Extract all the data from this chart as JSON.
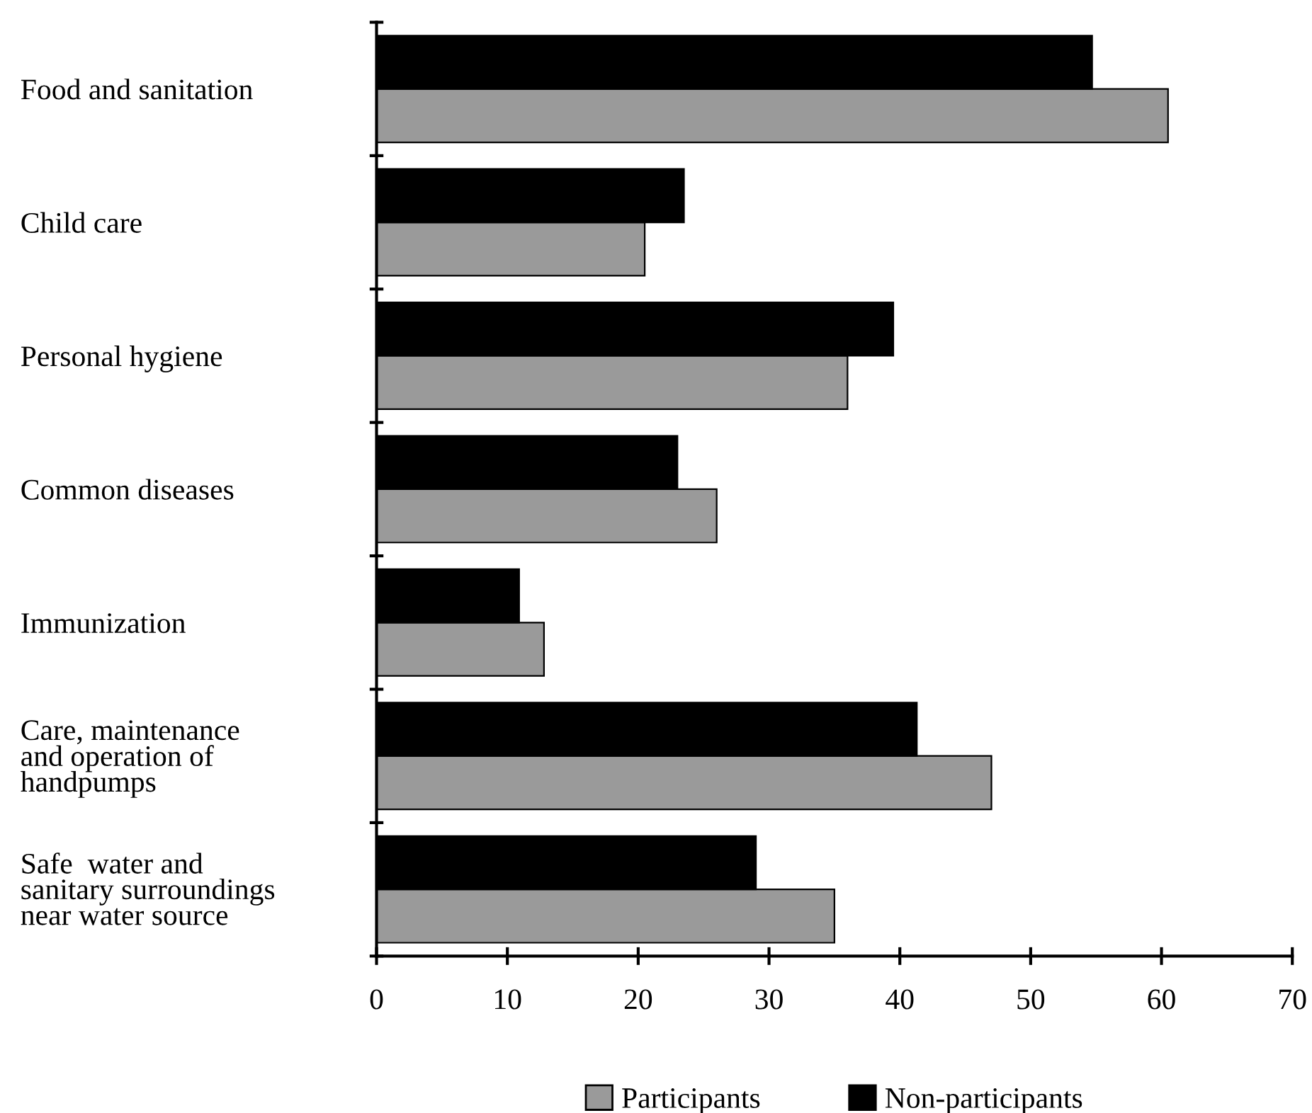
{
  "chart_data": {
    "type": "bar",
    "orientation": "horizontal",
    "categories": [
      "Food and sanitation",
      "Child care",
      "Personal hygiene",
      "Common diseases",
      "Immunization",
      "Care, maintenance\nand operation of\nhandpumps",
      "Safe  water and\nsanitary surroundings\nnear water source"
    ],
    "series": [
      {
        "name": "Participants",
        "color": "#9a9a9a",
        "values": [
          60.5,
          20.5,
          36,
          26,
          12.8,
          47,
          35
        ]
      },
      {
        "name": "Non-participants",
        "color": "#000000",
        "values": [
          54.7,
          23.5,
          39.5,
          23,
          10.9,
          41.3,
          29
        ]
      }
    ],
    "xlim": [
      0,
      70
    ],
    "xticks": [
      0,
      10,
      20,
      30,
      40,
      50,
      60,
      70
    ],
    "grid": false,
    "legend": "bottom"
  }
}
